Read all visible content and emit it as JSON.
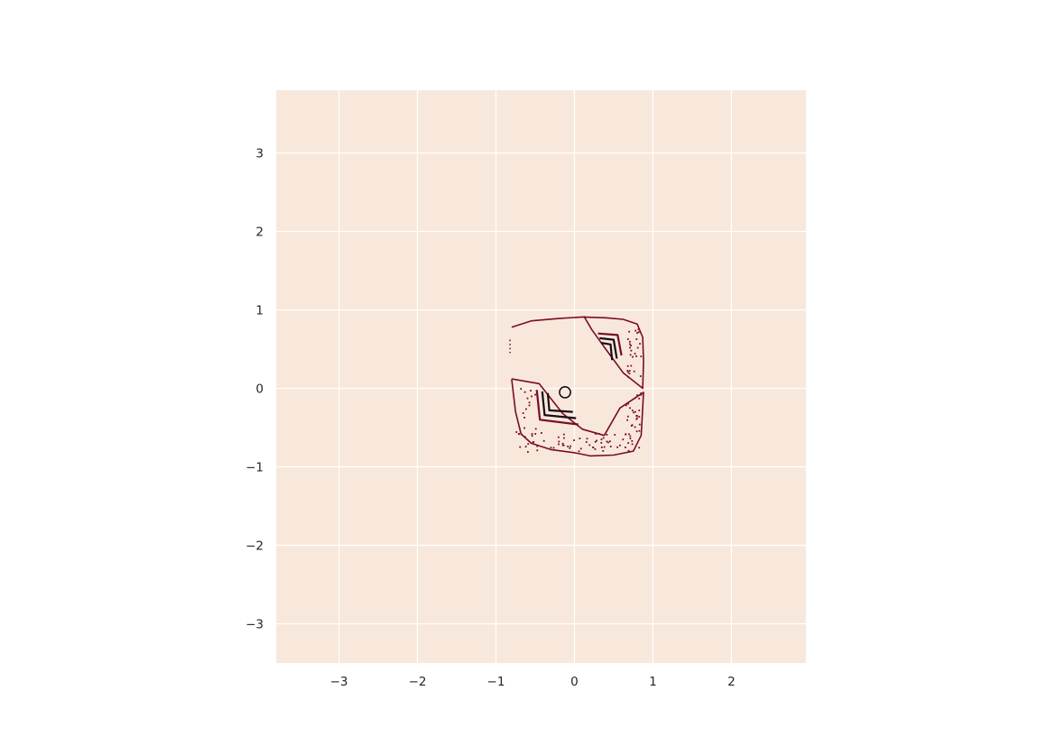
{
  "chart_data": {
    "type": "contour",
    "title": "",
    "xlabel": "",
    "ylabel": "",
    "xlim": [
      -3.8,
      2.95
    ],
    "ylim": [
      -3.5,
      3.8
    ],
    "xticks": [
      -3,
      -2,
      -1,
      0,
      1,
      2
    ],
    "yticks": [
      -3,
      -2,
      -1,
      0,
      1,
      2,
      3
    ],
    "xtick_labels": [
      "−3",
      "−2",
      "−1",
      "0",
      "1",
      "2"
    ],
    "ytick_labels": [
      "−3",
      "−2",
      "−1",
      "0",
      "1",
      "2",
      "3"
    ],
    "grid": true,
    "colors": {
      "plot_background": "#f8e8db",
      "grid": "#ffffff",
      "outer_level": "#7a0c26",
      "inner_level": "#1a0b18"
    },
    "outline_upper": [
      [
        -0.8,
        0.78
      ],
      [
        -0.55,
        0.86
      ],
      [
        -0.2,
        0.89
      ],
      [
        0.1,
        0.91
      ],
      [
        0.4,
        0.9
      ],
      [
        0.62,
        0.88
      ],
      [
        0.8,
        0.82
      ],
      [
        0.87,
        0.65
      ],
      [
        0.88,
        0.35
      ],
      [
        0.87,
        0.0
      ],
      [
        0.62,
        0.2
      ],
      [
        0.4,
        0.5
      ],
      [
        0.22,
        0.75
      ],
      [
        0.12,
        0.92
      ]
    ],
    "outline_lower": [
      [
        -0.8,
        0.12
      ],
      [
        -0.75,
        -0.3
      ],
      [
        -0.68,
        -0.58
      ],
      [
        -0.55,
        -0.7
      ],
      [
        -0.3,
        -0.78
      ],
      [
        0.0,
        -0.82
      ],
      [
        0.2,
        -0.86
      ],
      [
        0.5,
        -0.85
      ],
      [
        0.75,
        -0.8
      ],
      [
        0.85,
        -0.6
      ],
      [
        0.88,
        -0.05
      ],
      [
        0.58,
        -0.25
      ],
      [
        0.38,
        -0.6
      ],
      [
        0.1,
        -0.52
      ],
      [
        -0.15,
        -0.32
      ],
      [
        -0.45,
        0.06
      ],
      [
        -0.8,
        0.12
      ]
    ],
    "left_edge_dotted": [
      [
        -0.82,
        0.62
      ],
      [
        -0.82,
        0.45
      ]
    ],
    "inner_rings_upper": [
      [
        [
          0.3,
          0.7
        ],
        [
          0.55,
          0.68
        ],
        [
          0.6,
          0.42
        ]
      ],
      [
        [
          0.32,
          0.64
        ],
        [
          0.5,
          0.62
        ],
        [
          0.54,
          0.38
        ]
      ],
      [
        [
          0.34,
          0.58
        ],
        [
          0.46,
          0.56
        ],
        [
          0.48,
          0.36
        ]
      ]
    ],
    "inner_rings_lower": [
      [
        [
          -0.48,
          -0.02
        ],
        [
          -0.44,
          -0.4
        ],
        [
          0.05,
          -0.46
        ]
      ],
      [
        [
          -0.41,
          -0.04
        ],
        [
          -0.38,
          -0.34
        ],
        [
          0.02,
          -0.38
        ]
      ],
      [
        [
          -0.34,
          -0.06
        ],
        [
          -0.32,
          -0.28
        ],
        [
          -0.02,
          -0.3
        ]
      ]
    ],
    "small_loop": {
      "center": [
        -0.12,
        -0.05
      ],
      "radius": 0.07
    }
  }
}
